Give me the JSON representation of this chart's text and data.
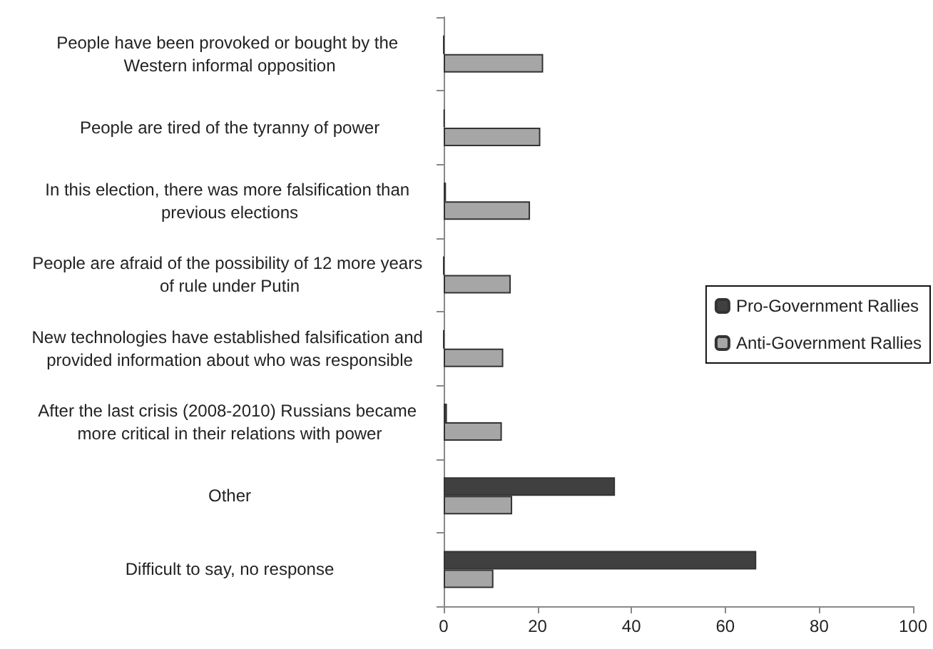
{
  "chart_data": {
    "type": "bar",
    "orientation": "horizontal",
    "categories": [
      "People have been provoked or bought by the Western informal opposition",
      "People are tired of the tyranny of power",
      "In this election, there was more falsification than previous elections",
      "People are afraid of the possibility of 12 more years of rule under Putin",
      "New technologies have established falsification and provided information about who was responsible",
      "After the last crisis (2008-2010) Russians became more critical in their relations with power",
      "Other",
      "Difficult to say, no response"
    ],
    "series": [
      {
        "name": "Pro-Government Rallies",
        "color": "#404040",
        "values": [
          0,
          0.2,
          0.5,
          0,
          0,
          0.7,
          36.5,
          66.6
        ]
      },
      {
        "name": "Anti-Government Rallies",
        "color": "#a6a6a6",
        "values": [
          21.2,
          20.6,
          18.4,
          14.3,
          12.7,
          12.4,
          14.6,
          10.6
        ]
      }
    ],
    "xlim": [
      0,
      100
    ],
    "xticks": [
      0,
      20,
      40,
      60,
      80,
      100
    ],
    "grid": false,
    "legend": "right"
  }
}
